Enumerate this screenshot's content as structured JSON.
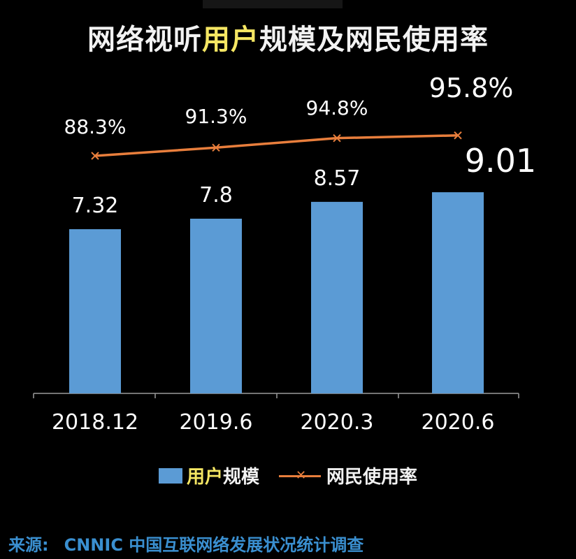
{
  "title": {
    "part1": "网络视听",
    "highlight": "用户",
    "part2": "规模及网民使用率"
  },
  "legend": {
    "bar_label_highlight": "用户",
    "bar_label_rest": "规模",
    "line_label": "网民使用率"
  },
  "source": {
    "label": "来源:",
    "text": "CNNIC 中国互联网络发展状况统计调查"
  },
  "colors": {
    "bar": "#5b9bd5",
    "line": "#e87e3c",
    "highlight": "#f5e663",
    "source": "#3a8fd0"
  },
  "chart_data": {
    "type": "bar",
    "title": "网络视听用户规模及网民使用率",
    "categories": [
      "2018.12",
      "2019.6",
      "2020.3",
      "2020.6"
    ],
    "series": [
      {
        "name": "用户规模",
        "type": "bar",
        "values": [
          7.32,
          7.8,
          8.57,
          9.01
        ],
        "labels": [
          "7.32",
          "7.8",
          "8.57",
          "9.01"
        ]
      },
      {
        "name": "网民使用率",
        "type": "line",
        "values": [
          88.3,
          91.3,
          94.8,
          95.8
        ],
        "labels": [
          "88.3%",
          "91.3%",
          "94.8%",
          "95.8%"
        ]
      }
    ],
    "grid": false,
    "legend": "bottom"
  }
}
